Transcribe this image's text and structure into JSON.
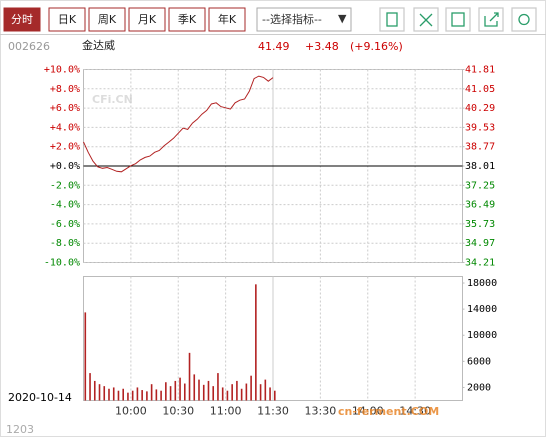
{
  "toolbar": {
    "tabs": [
      "分时",
      "日K",
      "周K",
      "月K",
      "季K",
      "年K"
    ],
    "dropdown": "--选择指标--",
    "arrow": "▼"
  },
  "header": {
    "code": "002626",
    "name": "金达威",
    "price": "41.49",
    "change": "+3.48",
    "percent": "(+9.16%)"
  },
  "watermark": "CFi.CN",
  "footer_watermark": "cn-ferment.COM",
  "footer_code": "1203",
  "chart_data": [
    {
      "type": "line",
      "x": [
        "09:30",
        "09:33",
        "09:36",
        "09:39",
        "09:42",
        "09:45",
        "09:48",
        "09:51",
        "09:54",
        "09:57",
        "10:00",
        "10:03",
        "10:06",
        "10:09",
        "10:12",
        "10:15",
        "10:18",
        "10:21",
        "10:24",
        "10:27",
        "10:30",
        "10:33",
        "10:36",
        "10:39",
        "10:42",
        "10:45",
        "10:48",
        "10:51",
        "10:54",
        "10:57",
        "11:00",
        "11:03",
        "11:06",
        "11:09",
        "11:12",
        "11:15",
        "11:18",
        "11:21",
        "11:24",
        "11:27",
        "11:30"
      ],
      "series": [
        {
          "color": "#b22222",
          "axis": "y2",
          "values": [
            38.96,
            38.55,
            38.2,
            37.98,
            37.92,
            37.95,
            37.88,
            37.8,
            37.78,
            37.9,
            38.02,
            38.1,
            38.25,
            38.35,
            38.4,
            38.55,
            38.62,
            38.8,
            38.95,
            39.1,
            39.3,
            39.5,
            39.45,
            39.7,
            39.85,
            40.05,
            40.2,
            40.45,
            40.5,
            40.35,
            40.3,
            40.25,
            40.5,
            40.6,
            40.65,
            40.95,
            41.45,
            41.55,
            41.5,
            41.35,
            41.49
          ]
        }
      ],
      "xlim": [
        "09:30",
        "15:00"
      ],
      "xticks": [
        "10:00",
        "10:30",
        "11:00",
        "11:30",
        "13:30",
        "14:00",
        "14:30"
      ],
      "ylim": [
        -10,
        10
      ],
      "yticks": [
        {
          "value": 10,
          "label": "+10.0%"
        },
        {
          "value": 8,
          "label": "+8.0%"
        },
        {
          "value": 6,
          "label": "+6.0%"
        },
        {
          "value": 4,
          "label": "+4.0%"
        },
        {
          "value": 2,
          "label": "+2.0%"
        },
        {
          "value": 0,
          "label": "+0.0%"
        },
        {
          "value": -2,
          "label": "-2.0%"
        },
        {
          "value": -4,
          "label": "-4.0%"
        },
        {
          "value": -6,
          "label": "-6.0%"
        },
        {
          "value": -8,
          "label": "-8.0%"
        },
        {
          "value": -10,
          "label": "-10.0%"
        }
      ],
      "y2lim": [
        34.21,
        41.81
      ],
      "y2ticks": [
        41.81,
        41.05,
        40.29,
        39.53,
        38.77,
        38.01,
        37.25,
        36.49,
        35.73,
        34.97,
        34.21
      ],
      "grid": true
    },
    {
      "type": "bar",
      "date": "2020-10-14",
      "x": [
        "09:30",
        "09:33",
        "09:36",
        "09:39",
        "09:42",
        "09:45",
        "09:48",
        "09:51",
        "09:54",
        "09:57",
        "10:00",
        "10:03",
        "10:06",
        "10:09",
        "10:12",
        "10:15",
        "10:18",
        "10:21",
        "10:24",
        "10:27",
        "10:30",
        "10:33",
        "10:36",
        "10:39",
        "10:42",
        "10:45",
        "10:48",
        "10:51",
        "10:54",
        "10:57",
        "11:00",
        "11:03",
        "11:06",
        "11:09",
        "11:12",
        "11:15",
        "11:18",
        "11:21",
        "11:24",
        "11:27",
        "11:30"
      ],
      "values": [
        13500,
        4200,
        3000,
        2500,
        2200,
        1800,
        2000,
        1500,
        1800,
        1200,
        1500,
        2000,
        1600,
        1400,
        2500,
        1700,
        1500,
        2800,
        2200,
        3000,
        3500,
        2600,
        7300,
        4000,
        3200,
        2400,
        3000,
        2200,
        4200,
        2000,
        1500,
        2500,
        3000,
        1800,
        2600,
        3800,
        17800,
        2500,
        3200,
        2000,
        1500
      ],
      "color": "#b22222",
      "xlim": [
        "09:30",
        "15:00"
      ],
      "xticks": [
        "10:00",
        "10:30",
        "11:00",
        "11:30",
        "13:30",
        "14:00",
        "14:30"
      ],
      "ylim": [
        0,
        19000
      ],
      "yticks": [
        18000,
        14000,
        10000,
        6000,
        2000
      ]
    }
  ]
}
